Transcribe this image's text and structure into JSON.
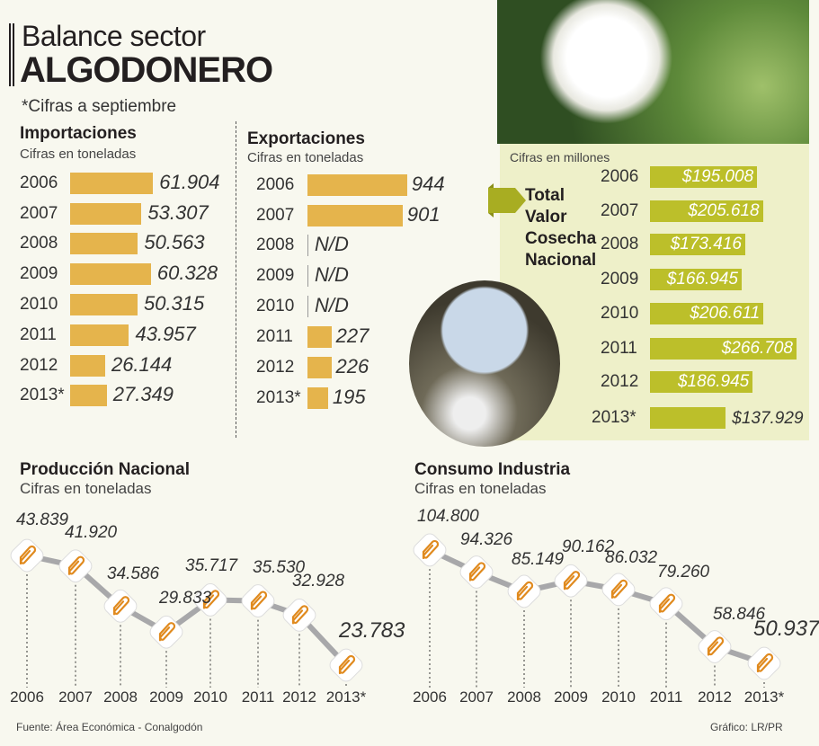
{
  "header": {
    "title_line1": "Balance sector",
    "title_line2": "ALGODONERO",
    "note": "*Cifras a septiembre"
  },
  "footer": {
    "source": "Fuente: Área Económica  - Conalgodón",
    "credit": "Gráfico: LR/PR"
  },
  "colors": {
    "imports": "#e5b44c",
    "exports": "#e5b44c",
    "cosecha": "#bcbf2a",
    "panel": "#eef0c9",
    "line": "#a8a8aa",
    "clip": "#e08a1e"
  },
  "icons": {
    "marker": "paperclip-icon",
    "arrow": "arrow-right-icon"
  },
  "chart_data": [
    {
      "type": "bar",
      "orientation": "horizontal",
      "title": "Importaciones",
      "subtitle": "Cifras en toneladas",
      "categories": [
        "2006",
        "2007",
        "2008",
        "2009",
        "2010",
        "2011",
        "2012",
        "2013*"
      ],
      "values": [
        61904,
        53307,
        50563,
        60328,
        50315,
        43957,
        26144,
        27349
      ],
      "labels": [
        "61.904",
        "53.307",
        "50.563",
        "60.328",
        "50.315",
        "43.957",
        "26.144",
        "27.349"
      ]
    },
    {
      "type": "bar",
      "orientation": "horizontal",
      "title": "Exportaciones",
      "subtitle": "Cifras en toneladas",
      "categories": [
        "2006",
        "2007",
        "2008",
        "2009",
        "2010",
        "2011",
        "2012",
        "2013*"
      ],
      "values": [
        944,
        901,
        null,
        null,
        null,
        227,
        226,
        195
      ],
      "labels": [
        "944",
        "901",
        "N/D",
        "N/D",
        "N/D",
        "227",
        "226",
        "195"
      ]
    },
    {
      "type": "bar",
      "orientation": "horizontal",
      "title": "Total Valor Cosecha Nacional",
      "subtitle": "Cifras en millones",
      "categories": [
        "2006",
        "2007",
        "2008",
        "2009",
        "2010",
        "2011",
        "2012",
        "2013*"
      ],
      "values": [
        195008,
        205618,
        173416,
        166945,
        206611,
        266708,
        186945,
        137929
      ],
      "labels": [
        "$195.008",
        "$205.618",
        "$173.416",
        "$166.945",
        "$206.611",
        "$266.708",
        "$186.945",
        "$137.929"
      ]
    },
    {
      "type": "line",
      "title": "Producción Nacional",
      "subtitle": "Cifras en toneladas",
      "categories": [
        "2006",
        "2007",
        "2008",
        "2009",
        "2010",
        "2011",
        "2012",
        "2013*"
      ],
      "values": [
        43839,
        41920,
        34586,
        29833,
        35717,
        35530,
        32928,
        23783
      ],
      "labels": [
        "43.839",
        "41.920",
        "34.586",
        "29.833",
        "35.717",
        "35.530",
        "32.928",
        "23.783"
      ]
    },
    {
      "type": "line",
      "title": "Consumo Industria",
      "subtitle": "Cifras en toneladas",
      "categories": [
        "2006",
        "2007",
        "2008",
        "2009",
        "2010",
        "2011",
        "2012",
        "2013*"
      ],
      "values": [
        104800,
        94326,
        85149,
        90162,
        86032,
        79260,
        58846,
        50937
      ],
      "labels": [
        "104.800",
        "94.326",
        "85.149",
        "90.162",
        "86.032",
        "79.260",
        "58.846",
        "50.937"
      ]
    }
  ]
}
